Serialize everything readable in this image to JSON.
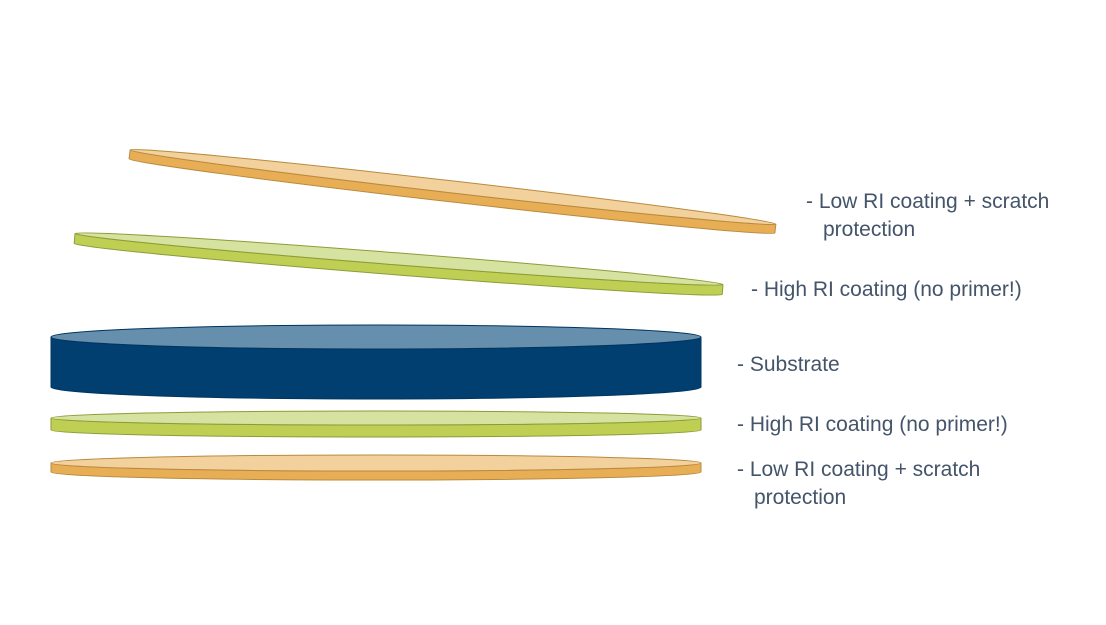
{
  "colors": {
    "label_text": "#44546A",
    "low_ri_top": "#F2D19C",
    "low_ri_side": "#E8AE55",
    "low_ri_edge": "#B98A3E",
    "high_ri_top": "#D6E3A0",
    "high_ri_side": "#BFCF53",
    "high_ri_edge": "#8E9B38",
    "substrate_top": "#668EAD",
    "substrate_side": "#003F6F",
    "substrate_edge": "#003560"
  },
  "layers": [
    {
      "id": "top-low-ri",
      "material": "low_ri",
      "label_line1": "- Low RI coating + scratch",
      "label_line2": "protection"
    },
    {
      "id": "top-high-ri",
      "material": "high_ri",
      "label_line1": "- High RI coating (no primer!)"
    },
    {
      "id": "substrate",
      "material": "substrate",
      "label_line1": "- Substrate"
    },
    {
      "id": "bottom-high-ri",
      "material": "high_ri",
      "label_line1": "- High RI coating (no primer!)"
    },
    {
      "id": "bottom-low-ri",
      "material": "low_ri",
      "label_line1": "- Low RI coating + scratch",
      "label_line2": "protection"
    }
  ]
}
